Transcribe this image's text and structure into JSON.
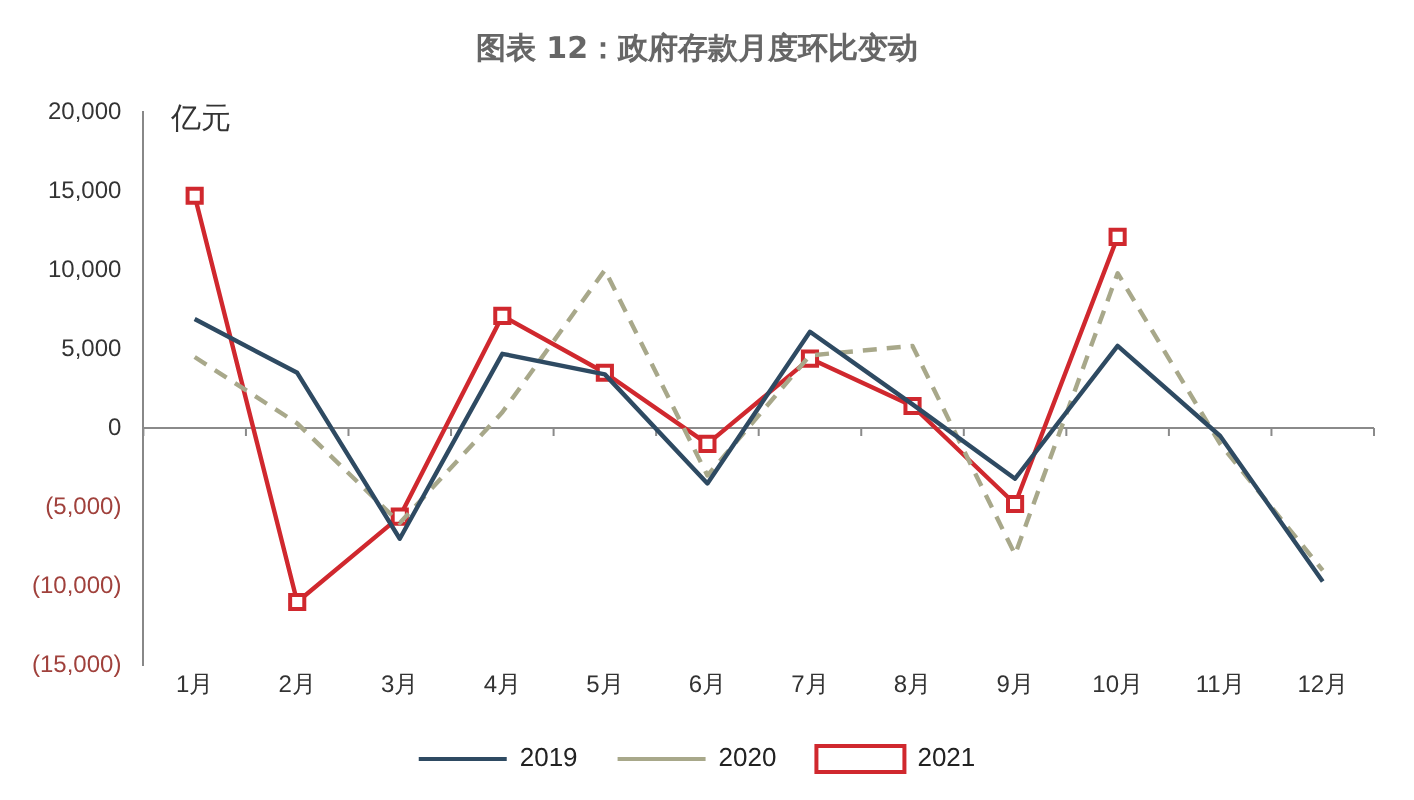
{
  "chart_data": {
    "type": "line",
    "title": "图表 12：政府存款月度环比变动",
    "ylabel": "亿元",
    "categories": [
      "1月",
      "2月",
      "3月",
      "4月",
      "5月",
      "6月",
      "7月",
      "8月",
      "9月",
      "10月",
      "11月",
      "12月"
    ],
    "series": [
      {
        "name": "2019",
        "color": "#2e4a62",
        "line_style": "solid",
        "marker": "none",
        "values": [
          6900,
          3500,
          -7000,
          4700,
          3400,
          -3500,
          6100,
          1500,
          -3200,
          5200,
          -500,
          -9700
        ]
      },
      {
        "name": "2020",
        "color": "#a8a88a",
        "line_style": "dashed",
        "marker": "none",
        "values": [
          4500,
          300,
          -6000,
          1000,
          10000,
          -3000,
          4600,
          5200,
          -8000,
          9800,
          -1000,
          -9000
        ]
      },
      {
        "name": "2021",
        "color": "#d0282e",
        "line_style": "solid",
        "marker": "square",
        "values": [
          14700,
          -11000,
          -5600,
          7100,
          3500,
          -1000,
          4400,
          1400,
          -4800,
          12100,
          null,
          null
        ]
      }
    ],
    "ylim": [
      -15000,
      20000
    ],
    "yticks": [
      {
        "value": -15000,
        "label": "(15,000)"
      },
      {
        "value": -10000,
        "label": "(10,000)"
      },
      {
        "value": -5000,
        "label": "(5,000)"
      },
      0,
      {
        "value": 5000,
        "label": "5,000"
      },
      {
        "value": 10000,
        "label": "10,000"
      },
      {
        "value": 15000,
        "label": "15,000"
      },
      {
        "value": 20000,
        "label": "20,000"
      }
    ],
    "ref_lines": [
      {
        "axis": "y",
        "value": 0,
        "color": "#8a8a8a"
      }
    ],
    "grid": false,
    "legend": "bottom"
  }
}
